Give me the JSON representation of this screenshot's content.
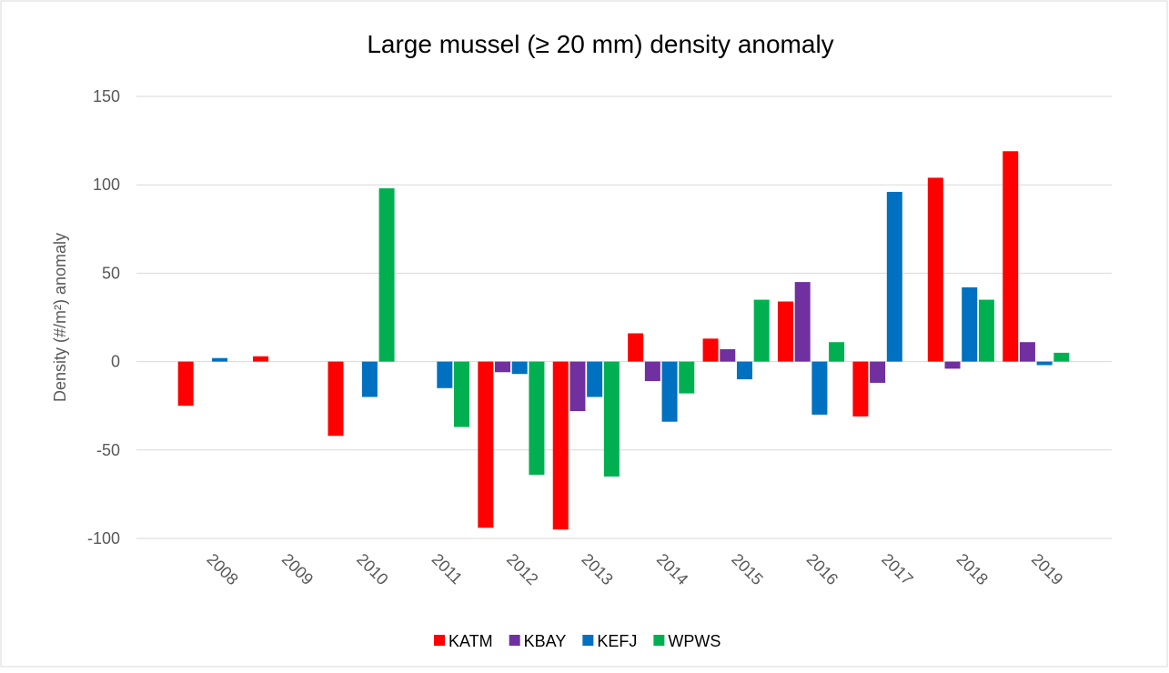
{
  "chart_data": {
    "type": "bar",
    "title": "Large mussel (≥ 20 mm) density anomaly",
    "y_label": "Density (#/m²) anomaly",
    "categories": [
      "2008",
      "2009",
      "2010",
      "2011",
      "2012",
      "2013",
      "2014",
      "2015",
      "2016",
      "2017",
      "2018",
      "2019"
    ],
    "series": [
      {
        "name": "KATM",
        "color": "#ff0000",
        "values": [
          -25,
          3,
          -42,
          null,
          -94,
          -95,
          16,
          13,
          34,
          -31,
          104,
          119
        ]
      },
      {
        "name": "KBAY",
        "color": "#7030a0",
        "values": [
          null,
          null,
          null,
          null,
          -6,
          -28,
          -11,
          7,
          45,
          -12,
          -4,
          11
        ]
      },
      {
        "name": "KEFJ",
        "color": "#0070c0",
        "values": [
          2,
          null,
          -20,
          -15,
          -7,
          -20,
          -34,
          -10,
          -30,
          96,
          42,
          -2
        ]
      },
      {
        "name": "WPWS",
        "color": "#00b050",
        "values": [
          null,
          null,
          98,
          -37,
          -64,
          -65,
          -18,
          35,
          11,
          null,
          35,
          5
        ]
      }
    ],
    "ylim": [
      -100,
      150
    ],
    "yticks": [
      -100,
      -50,
      0,
      50,
      100,
      150
    ],
    "grid": true,
    "legend": "bottom"
  }
}
